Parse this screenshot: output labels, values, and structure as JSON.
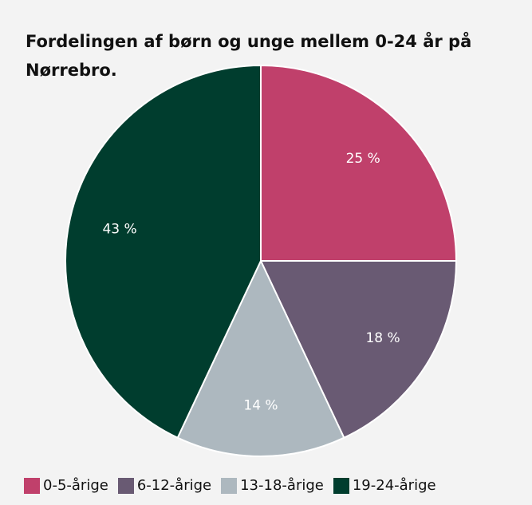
{
  "chart_data": {
    "type": "pie",
    "title": "Fordelingen af børn og unge mellem 0-24 år på Nørrebro.",
    "categories": [
      "0-5-årige",
      "6-12-årige",
      "13-18-årige",
      "19-24-årige"
    ],
    "values": [
      25,
      18,
      14,
      43
    ],
    "value_labels": [
      "25 %",
      "18 %",
      "14 %",
      "43 %"
    ],
    "colors": [
      "#c0406b",
      "#695a73",
      "#adb8bf",
      "#003d2e"
    ],
    "legend": "bottom"
  }
}
